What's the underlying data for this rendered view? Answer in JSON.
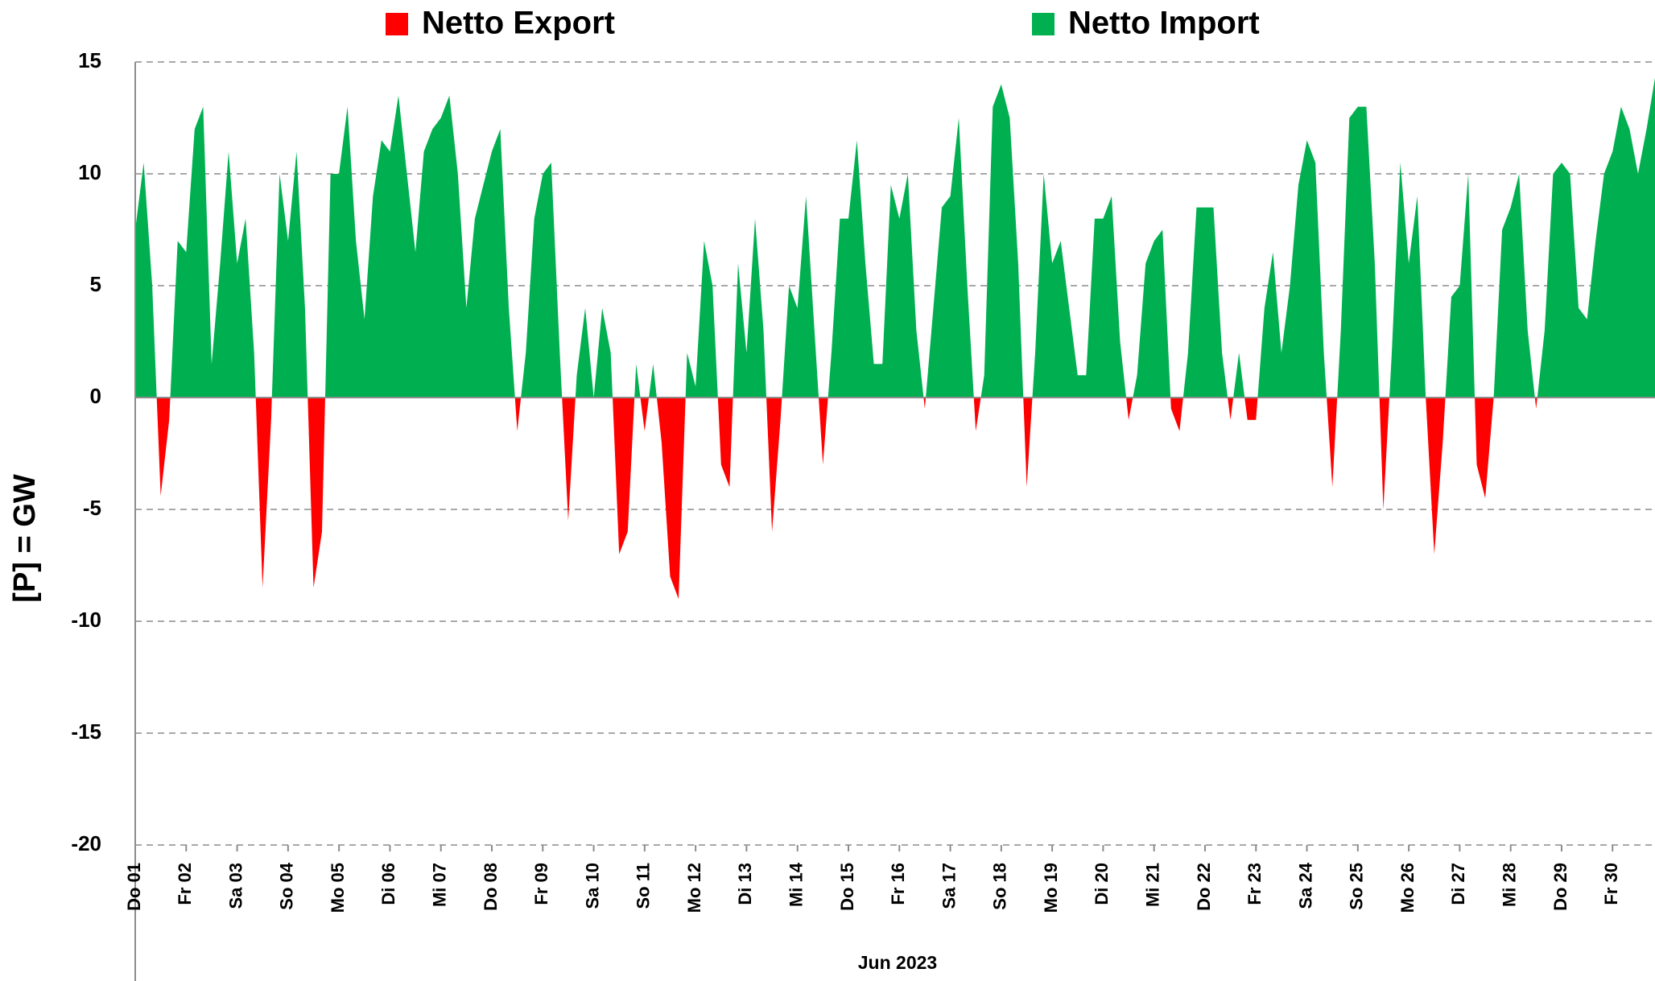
{
  "chart_data": {
    "type": "area",
    "y_label": "[P] = GW",
    "x_label": "Jun 2023",
    "legend": [
      {
        "name": "Netto Export",
        "color": "#ff0000"
      },
      {
        "name": "Netto Import",
        "color": "#00b050"
      }
    ],
    "negative_tick_color": "#ff0000",
    "grid": true,
    "ylim": [
      -20,
      15
    ],
    "yticks": [
      -20,
      -15,
      -10,
      -5,
      0,
      5,
      10,
      15
    ],
    "xlim": [
      0,
      716
    ],
    "xticks": [
      {
        "value": 0,
        "label": "Do 01"
      },
      {
        "value": 24,
        "label": "Fr 02"
      },
      {
        "value": 48,
        "label": "Sa 03"
      },
      {
        "value": 72,
        "label": "So 04"
      },
      {
        "value": 96,
        "label": "Mo 05"
      },
      {
        "value": 120,
        "label": "Di 06"
      },
      {
        "value": 144,
        "label": "Mi 07"
      },
      {
        "value": 168,
        "label": "Do 08"
      },
      {
        "value": 192,
        "label": "Fr 09"
      },
      {
        "value": 216,
        "label": "Sa 10"
      },
      {
        "value": 240,
        "label": "So 11"
      },
      {
        "value": 264,
        "label": "Mo 12"
      },
      {
        "value": 288,
        "label": "Di 13"
      },
      {
        "value": 312,
        "label": "Mi 14"
      },
      {
        "value": 336,
        "label": "Do 15"
      },
      {
        "value": 360,
        "label": "Fr 16"
      },
      {
        "value": 384,
        "label": "Sa 17"
      },
      {
        "value": 408,
        "label": "So 18"
      },
      {
        "value": 432,
        "label": "Mo 19"
      },
      {
        "value": 456,
        "label": "Di 20"
      },
      {
        "value": 480,
        "label": "Mi 21"
      },
      {
        "value": 504,
        "label": "Do 22"
      },
      {
        "value": 528,
        "label": "Fr 23"
      },
      {
        "value": 552,
        "label": "Sa 24"
      },
      {
        "value": 576,
        "label": "So 25"
      },
      {
        "value": 600,
        "label": "Mo 26"
      },
      {
        "value": 624,
        "label": "Di 27"
      },
      {
        "value": 648,
        "label": "Mi 28"
      },
      {
        "value": 672,
        "label": "Do 29"
      },
      {
        "value": 696,
        "label": "Fr 30"
      }
    ],
    "x": [
      0,
      4,
      8,
      12,
      16,
      20,
      24,
      28,
      32,
      36,
      40,
      44,
      48,
      52,
      56,
      60,
      64,
      68,
      72,
      76,
      80,
      84,
      88,
      92,
      96,
      100,
      104,
      108,
      112,
      116,
      120,
      124,
      128,
      132,
      136,
      140,
      144,
      148,
      152,
      156,
      160,
      164,
      168,
      172,
      176,
      180,
      184,
      188,
      192,
      196,
      200,
      204,
      208,
      212,
      216,
      220,
      224,
      228,
      232,
      236,
      240,
      244,
      248,
      252,
      256,
      260,
      264,
      268,
      272,
      276,
      280,
      284,
      288,
      292,
      296,
      300,
      304,
      308,
      312,
      316,
      320,
      324,
      328,
      332,
      336,
      340,
      344,
      348,
      352,
      356,
      360,
      364,
      368,
      372,
      376,
      380,
      384,
      388,
      392,
      396,
      400,
      404,
      408,
      412,
      416,
      420,
      424,
      428,
      432,
      436,
      440,
      444,
      448,
      452,
      456,
      460,
      464,
      468,
      472,
      476,
      480,
      484,
      488,
      492,
      496,
      500,
      504,
      508,
      512,
      516,
      520,
      524,
      528,
      532,
      536,
      540,
      544,
      548,
      552,
      556,
      560,
      564,
      568,
      572,
      576,
      580,
      584,
      588,
      592,
      596,
      600,
      604,
      608,
      612,
      616,
      620,
      624,
      628,
      632,
      636,
      640,
      644,
      648,
      652,
      656,
      660,
      664,
      668,
      672,
      676,
      680,
      684,
      688,
      692,
      696,
      700,
      704,
      708,
      712,
      716
    ],
    "values": [
      7.5,
      10.5,
      5,
      -4.4,
      -1,
      7,
      6.5,
      12,
      13,
      1.5,
      6,
      11,
      6,
      8,
      2,
      -8.5,
      -1,
      10,
      7,
      11,
      4,
      -8.5,
      -6,
      10,
      10,
      13,
      7,
      3.5,
      9,
      11.5,
      11,
      13.5,
      10,
      6.5,
      11,
      12,
      12.5,
      13.5,
      10,
      4,
      8,
      9.5,
      11,
      12,
      4,
      -1.5,
      2,
      8,
      10,
      10.5,
      2,
      -5.5,
      1,
      4,
      0,
      4,
      2,
      -7,
      -6,
      1.5,
      -1.5,
      1.5,
      -2,
      -8,
      -9,
      2,
      0.5,
      7,
      5,
      -3,
      -4,
      6,
      2,
      8,
      3,
      -6,
      -1,
      5,
      4,
      9,
      3,
      -3,
      2,
      8,
      8,
      11.5,
      6,
      1.5,
      1.5,
      9.5,
      8,
      10,
      3,
      -0.5,
      4,
      8.5,
      9,
      12.5,
      5,
      -1.5,
      1,
      13,
      14,
      12.5,
      6,
      -4,
      2,
      10,
      6,
      7,
      4,
      1,
      1,
      8,
      8,
      9,
      2.5,
      -1,
      1,
      6,
      7,
      7.5,
      -0.5,
      -1.5,
      2,
      8.5,
      8.5,
      8.5,
      2,
      -1,
      2,
      -1,
      -1,
      4,
      6.5,
      2,
      5,
      9.5,
      11.5,
      10.5,
      2,
      -4,
      3,
      12.5,
      13,
      13,
      6,
      -5,
      2,
      10.5,
      6,
      9,
      0,
      -7,
      -2,
      4.5,
      5,
      10,
      -3,
      -4.5,
      0,
      7.5,
      8.5,
      10,
      3,
      -0.5,
      3,
      10,
      10.5,
      10,
      4,
      3.5,
      7,
      10,
      11,
      13,
      12,
      10,
      12,
      14.3
    ]
  }
}
